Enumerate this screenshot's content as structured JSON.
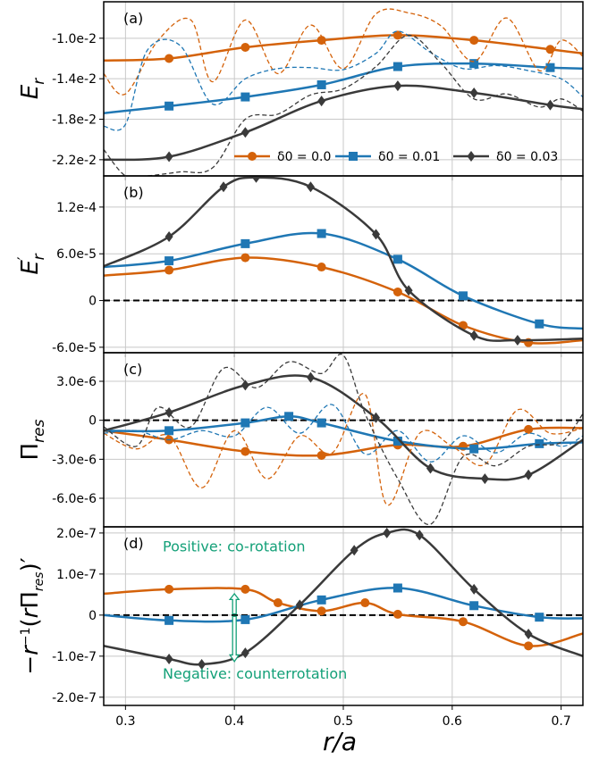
{
  "colors": {
    "orange": "#d4620a",
    "blue": "#1f77b4",
    "dark": "#3a3a3a",
    "annotation": "#13a078"
  },
  "xaxis": {
    "label": "r/a",
    "ticks": [
      "0.3",
      "0.4",
      "0.5",
      "0.6",
      "0.7"
    ]
  },
  "legend": [
    "δ0 = 0.0",
    "δ0 = 0.01",
    "δ0 = 0.03"
  ],
  "chart_data": [
    {
      "panel": "(a)",
      "type": "line",
      "ylabel": "Er",
      "xlim": [
        0.28,
        0.72
      ],
      "ylim": [
        -0.0236,
        -0.0064
      ],
      "yticks": [
        -0.022,
        -0.018,
        -0.014,
        -0.01
      ],
      "yticklabels": [
        "-2.2e-2",
        "-1.8e-2",
        "-1.4e-2",
        "-1.0e-2"
      ],
      "grid": true,
      "legend_position": "bottom-right",
      "series": [
        {
          "name": "δ0 = 0.0",
          "color": "orange",
          "marker": "circle",
          "dashed": false,
          "x": [
            0.28,
            0.34,
            0.41,
            0.48,
            0.55,
            0.62,
            0.69,
            0.72
          ],
          "y": [
            -0.0122,
            -0.012,
            -0.0109,
            -0.0102,
            -0.0097,
            -0.0102,
            -0.0111,
            -0.0115
          ]
        },
        {
          "name": "δ0 = 0.01",
          "color": "blue",
          "marker": "square",
          "dashed": false,
          "x": [
            0.28,
            0.34,
            0.41,
            0.48,
            0.55,
            0.62,
            0.69,
            0.72
          ],
          "y": [
            -0.0174,
            -0.0167,
            -0.0158,
            -0.0146,
            -0.0128,
            -0.0125,
            -0.0129,
            -0.013
          ]
        },
        {
          "name": "δ0 = 0.03",
          "color": "dark",
          "marker": "diamond",
          "dashed": false,
          "x": [
            0.28,
            0.34,
            0.41,
            0.48,
            0.55,
            0.62,
            0.69,
            0.72
          ],
          "y": [
            -0.022,
            -0.0217,
            -0.0193,
            -0.0162,
            -0.0147,
            -0.0154,
            -0.0166,
            -0.017
          ]
        },
        {
          "name": "",
          "color": "orange",
          "marker": "none",
          "dashed": true,
          "x": [
            0.28,
            0.3,
            0.33,
            0.36,
            0.38,
            0.41,
            0.44,
            0.47,
            0.5,
            0.53,
            0.56,
            0.59,
            0.62,
            0.65,
            0.68,
            0.7,
            0.72
          ],
          "y": [
            -0.0135,
            -0.0155,
            -0.0102,
            -0.0082,
            -0.0143,
            -0.0082,
            -0.0135,
            -0.0087,
            -0.013,
            -0.0076,
            -0.0075,
            -0.0088,
            -0.0123,
            -0.008,
            -0.0132,
            -0.0102,
            -0.0118
          ]
        },
        {
          "name": "",
          "color": "blue",
          "marker": "none",
          "dashed": true,
          "x": [
            0.28,
            0.3,
            0.32,
            0.35,
            0.38,
            0.41,
            0.44,
            0.47,
            0.5,
            0.53,
            0.55,
            0.58,
            0.61,
            0.64,
            0.67,
            0.7,
            0.72
          ],
          "y": [
            -0.0187,
            -0.0185,
            -0.0112,
            -0.0107,
            -0.0165,
            -0.014,
            -0.013,
            -0.0129,
            -0.0131,
            -0.0115,
            -0.0093,
            -0.0114,
            -0.013,
            -0.0127,
            -0.0132,
            -0.014,
            -0.0158
          ]
        },
        {
          "name": "",
          "color": "dark",
          "marker": "none",
          "dashed": true,
          "x": [
            0.28,
            0.3,
            0.32,
            0.35,
            0.38,
            0.41,
            0.44,
            0.47,
            0.5,
            0.53,
            0.56,
            0.59,
            0.62,
            0.65,
            0.68,
            0.7,
            0.72
          ],
          "y": [
            -0.021,
            -0.0236,
            -0.0236,
            -0.0232,
            -0.0228,
            -0.018,
            -0.0175,
            -0.0156,
            -0.015,
            -0.0128,
            -0.0097,
            -0.0125,
            -0.016,
            -0.0155,
            -0.0168,
            -0.016,
            -0.0172
          ]
        }
      ]
    },
    {
      "panel": "(b)",
      "type": "line",
      "ylabel": "E'r",
      "xlim": [
        0.28,
        0.72
      ],
      "ylim": [
        -6.7e-05,
        0.00016
      ],
      "yticks": [
        -6e-05,
        0,
        6e-05,
        0.00012
      ],
      "yticklabels": [
        "-6.0e-5",
        "0",
        "6.0e-5",
        "1.2e-4"
      ],
      "grid": true,
      "zero_line": true,
      "series": [
        {
          "name": "δ0 = 0.0",
          "color": "orange",
          "marker": "circle",
          "x": [
            0.28,
            0.34,
            0.41,
            0.48,
            0.55,
            0.61,
            0.67,
            0.72
          ],
          "y": [
            3.2e-05,
            3.9e-05,
            5.5e-05,
            4.3e-05,
            1.1e-05,
            -3.2e-05,
            -5.4e-05,
            -5.1e-05
          ]
        },
        {
          "name": "δ0 = 0.01",
          "color": "blue",
          "marker": "square",
          "x": [
            0.28,
            0.34,
            0.41,
            0.48,
            0.55,
            0.61,
            0.68,
            0.72
          ],
          "y": [
            4.3e-05,
            5.1e-05,
            7.3e-05,
            8.6e-05,
            5.3e-05,
            6e-06,
            -3e-05,
            -3.6e-05
          ]
        },
        {
          "name": "δ0 = 0.03",
          "color": "dark",
          "marker": "diamond",
          "x": [
            0.28,
            0.34,
            0.39,
            0.42,
            0.47,
            0.53,
            0.56,
            0.62,
            0.66,
            0.72
          ],
          "y": [
            4.4e-05,
            8.2e-05,
            0.000146,
            0.000158,
            0.000146,
            8.5e-05,
            1.3e-05,
            -4.5e-05,
            -5.1e-05,
            -4.9e-05
          ]
        }
      ]
    },
    {
      "panel": "(c)",
      "type": "line",
      "ylabel": "Πres",
      "xlim": [
        0.28,
        0.72
      ],
      "ylim": [
        -8.2e-06,
        5.2e-06
      ],
      "yticks": [
        -6e-06,
        -3e-06,
        0,
        3e-06
      ],
      "yticklabels": [
        "-6.0e-6",
        "-3.0e-6",
        "0",
        "3.0e-6"
      ],
      "grid": true,
      "zero_line": true,
      "series": [
        {
          "name": "δ0 = 0.0",
          "color": "orange",
          "marker": "circle",
          "dashed": false,
          "x": [
            0.28,
            0.34,
            0.41,
            0.48,
            0.55,
            0.61,
            0.67,
            0.72
          ],
          "y": [
            -8e-07,
            -1.5e-06,
            -2.4e-06,
            -2.7e-06,
            -1.9e-06,
            -2e-06,
            -7e-07,
            -6e-07
          ]
        },
        {
          "name": "δ0 = 0.01",
          "color": "blue",
          "marker": "square",
          "dashed": false,
          "x": [
            0.28,
            0.34,
            0.41,
            0.45,
            0.48,
            0.55,
            0.62,
            0.68,
            0.72
          ],
          "y": [
            -8e-07,
            -8e-07,
            -2e-07,
            3e-07,
            -2e-07,
            -1.6e-06,
            -2.2e-06,
            -1.8e-06,
            -1.7e-06
          ]
        },
        {
          "name": "δ0 = 0.03",
          "color": "dark",
          "marker": "diamond",
          "dashed": false,
          "x": [
            0.28,
            0.34,
            0.41,
            0.47,
            0.53,
            0.58,
            0.63,
            0.67,
            0.72
          ],
          "y": [
            -8e-07,
            6e-07,
            2.7e-06,
            3.3e-06,
            2e-07,
            -3.7e-06,
            -4.5e-06,
            -4.2e-06,
            -1.5e-06
          ]
        },
        {
          "name": "",
          "color": "orange",
          "marker": "none",
          "dashed": true,
          "x": [
            0.28,
            0.31,
            0.34,
            0.37,
            0.4,
            0.43,
            0.46,
            0.49,
            0.52,
            0.54,
            0.57,
            0.6,
            0.63,
            0.66,
            0.69,
            0.72
          ],
          "y": [
            -1e-06,
            -2.2e-06,
            -1.2e-06,
            -5.2e-06,
            -8e-07,
            -4.5e-06,
            -1.2e-06,
            -2.5e-06,
            2e-06,
            -6.5e-06,
            -1e-06,
            -2e-06,
            -3.4e-06,
            8e-07,
            -1e-06,
            -6e-07
          ]
        },
        {
          "name": "",
          "color": "blue",
          "marker": "none",
          "dashed": true,
          "x": [
            0.28,
            0.31,
            0.34,
            0.37,
            0.4,
            0.43,
            0.46,
            0.49,
            0.52,
            0.55,
            0.58,
            0.61,
            0.64,
            0.67,
            0.7,
            0.72
          ],
          "y": [
            -1e-06,
            -8e-07,
            -1.5e-06,
            -8e-07,
            -1.2e-06,
            1e-06,
            -1e-06,
            1.2e-06,
            -2.6e-06,
            -8e-07,
            -3.2e-06,
            -1.2e-06,
            -2.5e-06,
            -1e-06,
            -2e-06,
            -1.2e-06
          ]
        },
        {
          "name": "",
          "color": "dark",
          "marker": "none",
          "dashed": true,
          "x": [
            0.28,
            0.31,
            0.33,
            0.36,
            0.39,
            0.42,
            0.45,
            0.48,
            0.5,
            0.52,
            0.55,
            0.58,
            0.61,
            0.64,
            0.67,
            0.7,
            0.72
          ],
          "y": [
            -5e-07,
            -2e-06,
            1e-06,
            -5e-07,
            4e-06,
            2.5e-06,
            4.5e-06,
            3.6e-06,
            5e-06,
            5e-07,
            -4.5e-06,
            -8e-06,
            -2.8e-06,
            -3.5e-06,
            -2e-06,
            -1.7e-06,
            5e-07
          ]
        }
      ]
    },
    {
      "panel": "(d)",
      "type": "line",
      "ylabel": "−r⁻¹(rΠres)′",
      "xlim": [
        0.28,
        0.72
      ],
      "ylim": [
        -2.2e-07,
        2.15e-07
      ],
      "yticks": [
        -2e-07,
        -1e-07,
        0,
        1e-07,
        2e-07
      ],
      "yticklabels": [
        "-2.0e-7",
        "-1.0e-7",
        "0",
        "1.0e-7",
        "2.0e-7"
      ],
      "grid": true,
      "zero_line": true,
      "series": [
        {
          "name": "δ0 = 0.0",
          "color": "orange",
          "marker": "circle",
          "x": [
            0.28,
            0.34,
            0.41,
            0.44,
            0.48,
            0.52,
            0.55,
            0.61,
            0.67,
            0.72
          ],
          "y": [
            5.2e-08,
            6.3e-08,
            6.3e-08,
            3e-08,
            1e-08,
            3e-08,
            2e-09,
            -1.6e-08,
            -7.5e-08,
            -4.5e-08
          ]
        },
        {
          "name": "δ0 = 0.01",
          "color": "blue",
          "marker": "square",
          "x": [
            0.28,
            0.34,
            0.41,
            0.48,
            0.55,
            0.62,
            0.68,
            0.72
          ],
          "y": [
            0.0,
            -1.3e-08,
            -1.1e-08,
            3.7e-08,
            6.6e-08,
            2.3e-08,
            -5e-09,
            -8e-09
          ]
        },
        {
          "name": "δ0 = 0.03",
          "color": "dark",
          "marker": "diamond",
          "x": [
            0.28,
            0.34,
            0.37,
            0.41,
            0.46,
            0.51,
            0.54,
            0.57,
            0.62,
            0.67,
            0.72
          ],
          "y": [
            -7.5e-08,
            -1.07e-07,
            -1.2e-07,
            -9.2e-08,
            2.5e-08,
            1.58e-07,
            2e-07,
            1.95e-07,
            6.3e-08,
            -4.6e-08,
            -1e-07
          ]
        }
      ],
      "annotations": {
        "positive": "Positive: co-rotation",
        "negative": "Negative: counterrotation"
      }
    }
  ]
}
